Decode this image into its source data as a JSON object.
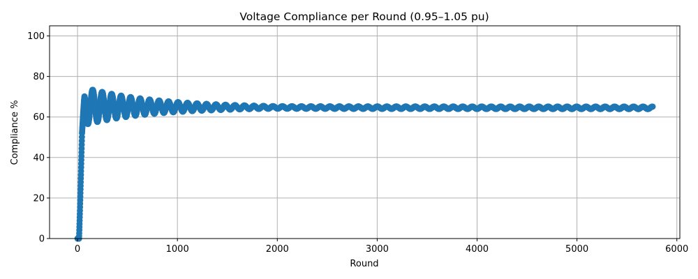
{
  "chart_data": {
    "type": "scatter",
    "title": "Voltage Compliance per Round (0.95–1.05 pu)",
    "xlabel": "Round",
    "ylabel": "Compliance %",
    "xlim": [
      -280,
      6030
    ],
    "ylim": [
      0,
      105
    ],
    "xticks": [
      0,
      1000,
      2000,
      3000,
      4000,
      5000,
      6000
    ],
    "yticks": [
      0,
      20,
      40,
      60,
      80,
      100
    ],
    "grid": true,
    "marker_color": "#1f77b4",
    "series": [
      {
        "model": "damped oscillation sampled every round",
        "x_start": 0,
        "x_end": 5760,
        "initial_zero_until": 15,
        "rise_until": 45,
        "steady_value": 64.5,
        "oscillation_period": 95,
        "initial_amplitude": 9.5,
        "amplitude_decay_rounds": 700,
        "minimum_amplitude": 0.6,
        "key_points": [
          [
            0,
            0
          ],
          [
            10,
            0
          ],
          [
            20,
            4
          ],
          [
            25,
            15
          ],
          [
            30,
            28
          ],
          [
            35,
            38
          ],
          [
            40,
            46
          ],
          [
            45,
            52
          ],
          [
            60,
            62
          ],
          [
            80,
            70
          ],
          [
            85,
            73
          ],
          [
            110,
            54
          ],
          [
            180,
            69
          ],
          [
            200,
            58
          ],
          [
            280,
            67
          ],
          [
            300,
            61
          ],
          [
            380,
            66
          ],
          [
            480,
            65.5
          ],
          [
            1000,
            65
          ],
          [
            3000,
            64.5
          ],
          [
            5760,
            64.5
          ]
        ]
      }
    ]
  }
}
